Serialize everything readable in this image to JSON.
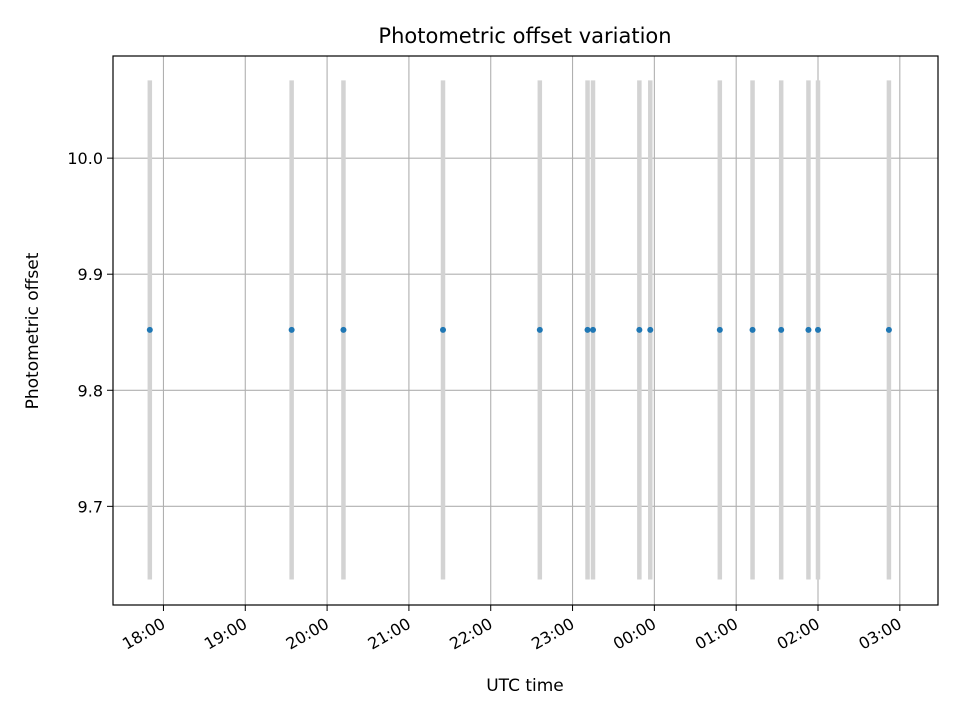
{
  "chart_data": {
    "type": "scatter",
    "title": "Photometric offset variation",
    "xlabel": "UTC time",
    "ylabel": "Photometric offset",
    "x_ticks": [
      "18:00",
      "19:00",
      "20:00",
      "21:00",
      "22:00",
      "23:00",
      "00:00",
      "01:00",
      "02:00",
      "03:00"
    ],
    "xlim": [
      "17:23",
      "03:28"
    ],
    "ylim": [
      9.615,
      10.088
    ],
    "y_ticks": [
      "9.7",
      "9.8",
      "9.9",
      "10.0"
    ],
    "grid": true,
    "colors": {
      "point": "#1f77b4",
      "errorbar": "#d3d3d3",
      "grid": "#b0b0b0"
    },
    "points": [
      {
        "x": "17:50",
        "y": 9.852,
        "ylow": 9.637,
        "yhigh": 10.067
      },
      {
        "x": "19:34",
        "y": 9.852,
        "ylow": 9.637,
        "yhigh": 10.067
      },
      {
        "x": "20:12",
        "y": 9.852,
        "ylow": 9.637,
        "yhigh": 10.067
      },
      {
        "x": "21:25",
        "y": 9.852,
        "ylow": 9.637,
        "yhigh": 10.067
      },
      {
        "x": "22:36",
        "y": 9.852,
        "ylow": 9.637,
        "yhigh": 10.067
      },
      {
        "x": "23:11",
        "y": 9.852,
        "ylow": 9.637,
        "yhigh": 10.067
      },
      {
        "x": "23:15",
        "y": 9.852,
        "ylow": 9.637,
        "yhigh": 10.067
      },
      {
        "x": "23:49",
        "y": 9.852,
        "ylow": 9.637,
        "yhigh": 10.067
      },
      {
        "x": "23:57",
        "y": 9.852,
        "ylow": 9.637,
        "yhigh": 10.067
      },
      {
        "x": "00:48",
        "y": 9.852,
        "ylow": 9.637,
        "yhigh": 10.067
      },
      {
        "x": "01:12",
        "y": 9.852,
        "ylow": 9.637,
        "yhigh": 10.067
      },
      {
        "x": "01:33",
        "y": 9.852,
        "ylow": 9.637,
        "yhigh": 10.067
      },
      {
        "x": "01:53",
        "y": 9.852,
        "ylow": 9.637,
        "yhigh": 10.067
      },
      {
        "x": "02:00",
        "y": 9.852,
        "ylow": 9.637,
        "yhigh": 10.067
      },
      {
        "x": "02:52",
        "y": 9.852,
        "ylow": 9.637,
        "yhigh": 10.067
      }
    ]
  }
}
